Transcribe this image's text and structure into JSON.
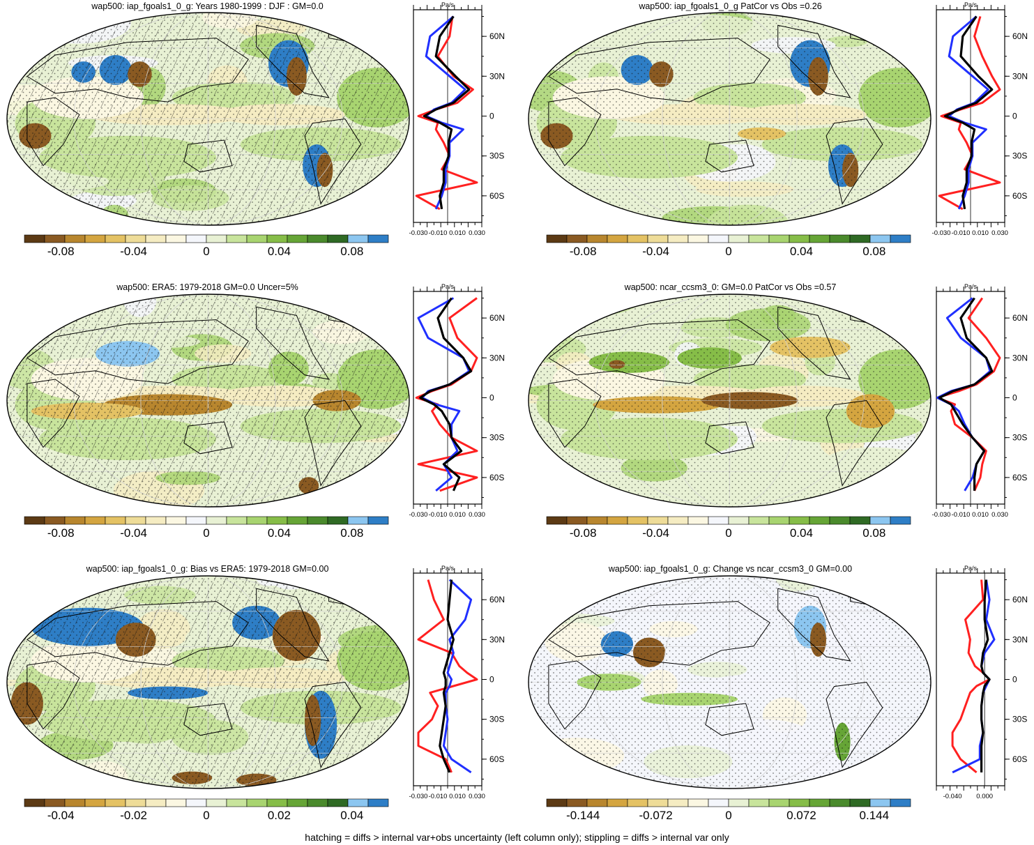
{
  "footnote": "hatching = diffs > internal var+obs uncertainty (left column only); stippling = diffs > internal var only",
  "colors": {
    "scale": [
      "#5c3a14",
      "#8a5a22",
      "#b8862e",
      "#d4a540",
      "#e4c264",
      "#eedc98",
      "#f5ecc2",
      "#fbf7e2",
      "#f4f6fb",
      "#e8f1d4",
      "#c8e49c",
      "#a8d470",
      "#86bd48",
      "#66a536",
      "#4a8a2c",
      "#2f6a24",
      "#8cc6f0",
      "#2e7ec6"
    ],
    "obs": "#ff2020",
    "model": "#2030ff",
    "diff": "#000000"
  },
  "chart_data": [
    {
      "type": "map+profile",
      "title": "wap500: iap_fgoals1_0_g: Years 1980-1999 : DJF : GM=0.0",
      "units": "Pa/s",
      "colorbar_labels": [
        "-0.08",
        "-0.04",
        "0",
        "0.04",
        "0.08"
      ],
      "colorbar_range": [
        -0.1,
        0.1
      ],
      "hatching": true,
      "profile_xticks": [
        "-0.030",
        "-0.010",
        "0.010",
        "0.030"
      ],
      "profile_xlim": [
        -0.035,
        0.035
      ],
      "profile_yticks": [
        "60N",
        "30N",
        "0",
        "30S",
        "60S"
      ],
      "lat": [
        75,
        60,
        45,
        30,
        20,
        10,
        5,
        0,
        -5,
        -10,
        -20,
        -30,
        -40,
        -50,
        -60,
        -70
      ],
      "series": [
        {
          "name": "obs",
          "values": [
            0.005,
            0.002,
            -0.01,
            0.006,
            0.026,
            0.01,
            -0.012,
            -0.03,
            -0.01,
            -0.012,
            -0.004,
            0.002,
            -0.006,
            0.03,
            -0.032,
            -0.008
          ]
        },
        {
          "name": "model",
          "values": [
            0.006,
            -0.018,
            -0.022,
            0.002,
            0.018,
            0.004,
            -0.014,
            -0.022,
            -0.006,
            0.016,
            0.002,
            0.002,
            -0.002,
            -0.002,
            -0.006,
            -0.012
          ]
        },
        {
          "name": "diff",
          "values": [
            0.006,
            -0.008,
            -0.012,
            0.008,
            0.022,
            0.006,
            -0.012,
            -0.024,
            -0.008,
            0.004,
            0.001,
            0.001,
            -0.004,
            -0.004,
            -0.008,
            -0.006
          ]
        }
      ]
    },
    {
      "type": "map+profile",
      "title": "wap500: iap_fgoals1_0_g PatCor vs Obs =0.26",
      "units": "Pa/s",
      "colorbar_labels": [
        "-0.08",
        "-0.04",
        "0",
        "0.04",
        "0.08"
      ],
      "colorbar_range": [
        -0.1,
        0.1
      ],
      "hatching": false,
      "profile_xticks": [
        "-0.030",
        "-0.010",
        "0.010",
        "0.030"
      ],
      "profile_xlim": [
        -0.035,
        0.035
      ],
      "profile_yticks": [
        "60N",
        "30N",
        "0",
        "30S",
        "60S"
      ],
      "lat": [
        75,
        60,
        45,
        30,
        20,
        10,
        5,
        0,
        -5,
        -10,
        -20,
        -30,
        -40,
        -50,
        -60,
        -70
      ],
      "series": [
        {
          "name": "obs",
          "values": [
            0.01,
            0.004,
            0.012,
            0.022,
            0.03,
            0.012,
            -0.01,
            -0.03,
            -0.01,
            -0.012,
            -0.004,
            0.002,
            -0.006,
            0.03,
            -0.032,
            -0.008
          ]
        },
        {
          "name": "model",
          "values": [
            0.006,
            -0.018,
            -0.022,
            0.002,
            0.018,
            0.004,
            -0.014,
            -0.022,
            -0.006,
            0.016,
            0.002,
            0.002,
            -0.002,
            -0.002,
            -0.006,
            -0.012
          ]
        },
        {
          "name": "diff",
          "values": [
            0.006,
            -0.008,
            -0.01,
            0.008,
            0.022,
            0.006,
            -0.012,
            -0.026,
            -0.008,
            0.004,
            0.001,
            0.001,
            -0.004,
            -0.004,
            -0.008,
            -0.006
          ]
        }
      ]
    },
    {
      "type": "map+profile",
      "title": "wap500: ERA5: 1979-2018 GM=0.0 Uncer=5%",
      "units": "Pa/s",
      "colorbar_labels": [
        "-0.08",
        "-0.04",
        "0",
        "0.04",
        "0.08"
      ],
      "colorbar_range": [
        -0.1,
        0.1
      ],
      "hatching": true,
      "profile_xticks": [
        "-0.030",
        "-0.010",
        "0.010",
        "0.030"
      ],
      "profile_xlim": [
        -0.035,
        0.035
      ],
      "profile_yticks": [
        "60N",
        "30N",
        "0",
        "30S",
        "60S"
      ],
      "lat": [
        75,
        60,
        45,
        30,
        20,
        10,
        5,
        0,
        -5,
        -10,
        -20,
        -30,
        -40,
        -50,
        -60,
        -70
      ],
      "series": [
        {
          "name": "obs",
          "values": [
            0.03,
            0.002,
            0.01,
            0.03,
            0.024,
            0.004,
            -0.016,
            -0.032,
            -0.01,
            -0.016,
            -0.008,
            0.004,
            0.03,
            -0.03,
            0.03,
            -0.008
          ]
        },
        {
          "name": "model",
          "values": [
            0.006,
            -0.03,
            -0.02,
            0.016,
            0.022,
            0.002,
            -0.02,
            -0.026,
            -0.012,
            0.012,
            0.004,
            0.004,
            0.01,
            -0.004,
            0.004,
            -0.012
          ]
        },
        {
          "name": "diff",
          "values": [
            0.004,
            -0.01,
            -0.004,
            0.016,
            0.024,
            0.002,
            -0.018,
            -0.028,
            -0.014,
            -0.006,
            0.002,
            0.004,
            0.014,
            -0.004,
            0.012,
            0.006
          ]
        }
      ]
    },
    {
      "type": "map+profile",
      "title": "wap500: ncar_ccsm3_0: GM=0.0 PatCor vs Obs =0.57",
      "units": "Pa/s",
      "colorbar_labels": [
        "-0.08",
        "-0.04",
        "0",
        "0.04",
        "0.08"
      ],
      "colorbar_range": [
        -0.1,
        0.1
      ],
      "hatching": false,
      "profile_xticks": [
        "-0.030",
        "-0.010",
        "0.010",
        "0.030"
      ],
      "profile_xlim": [
        -0.035,
        0.035
      ],
      "profile_yticks": [
        "60N",
        "30N",
        "0",
        "30S",
        "60S"
      ],
      "lat": [
        75,
        60,
        45,
        30,
        20,
        10,
        5,
        0,
        -5,
        -10,
        -20,
        -30,
        -40,
        -50,
        -60,
        -70
      ],
      "series": [
        {
          "name": "obs",
          "values": [
            0.012,
            -0.002,
            0.016,
            0.03,
            0.024,
            0.006,
            -0.012,
            -0.034,
            -0.016,
            -0.02,
            -0.016,
            0.002,
            0.016,
            0.012,
            0.01,
            0.004
          ]
        },
        {
          "name": "model",
          "values": [
            0.002,
            -0.024,
            -0.01,
            0.016,
            0.02,
            0.004,
            -0.02,
            -0.034,
            -0.02,
            -0.012,
            -0.006,
            0.002,
            0.014,
            0.006,
            0.002,
            -0.006
          ]
        },
        {
          "name": "diff",
          "values": [
            0.004,
            -0.01,
            -0.004,
            0.016,
            0.022,
            0.004,
            -0.018,
            -0.032,
            -0.02,
            -0.016,
            -0.008,
            0.002,
            0.014,
            0.006,
            0.004,
            0.004
          ]
        }
      ]
    },
    {
      "type": "map+profile",
      "title": "wap500: iap_fgoals1_0_g: Bias vs ERA5: 1979-2018 GM=0.00",
      "units": "Pa/s",
      "colorbar_labels": [
        "-0.04",
        "-0.02",
        "0",
        "0.02",
        "0.04"
      ],
      "colorbar_range": [
        -0.05,
        0.05
      ],
      "hatching": true,
      "profile_xticks": [
        "-0.030",
        "-0.010",
        "0.010",
        "0.030"
      ],
      "profile_xlim": [
        -0.035,
        0.035
      ],
      "profile_yticks": [
        "60N",
        "30N",
        "0",
        "30S",
        "60S"
      ],
      "lat": [
        75,
        60,
        45,
        30,
        20,
        10,
        5,
        0,
        -5,
        -10,
        -20,
        -30,
        -40,
        -50,
        -60,
        -70
      ],
      "series": [
        {
          "name": "obs",
          "values": [
            -0.02,
            -0.014,
            -0.004,
            -0.03,
            0.004,
            0.012,
            0.02,
            0.03,
            0.006,
            -0.018,
            -0.01,
            -0.016,
            -0.03,
            -0.03,
            -0.002,
            0.004
          ]
        },
        {
          "name": "model",
          "values": [
            0.002,
            0.024,
            0.018,
            0.002,
            0.006,
            0.002,
            0.0,
            0.004,
            0.002,
            -0.002,
            -0.002,
            0.0,
            -0.002,
            -0.004,
            0.004,
            0.024
          ]
        },
        {
          "name": "diff",
          "values": [
            0.004,
            0.002,
            0.0,
            0.006,
            0.002,
            -0.002,
            -0.004,
            -0.002,
            -0.002,
            -0.004,
            -0.002,
            -0.004,
            -0.006,
            -0.008,
            -0.004,
            0.002
          ]
        }
      ]
    },
    {
      "type": "map+profile",
      "title": "wap500: iap_fgoals1_0_g: Change vs ncar_ccsm3_0 GM=0.00",
      "units": "Pa/s",
      "colorbar_labels": [
        "-0.144",
        "-0.072",
        "0",
        "0.072",
        "0.144"
      ],
      "colorbar_range": [
        -0.18,
        0.18
      ],
      "hatching": false,
      "profile_xticks": [
        "-0.040",
        "0.000"
      ],
      "profile_xlim": [
        -0.06,
        0.025
      ],
      "profile_yticks": [
        "60N",
        "30N",
        "0",
        "30S",
        "60S"
      ],
      "lat": [
        75,
        60,
        45,
        30,
        20,
        10,
        5,
        0,
        -5,
        -10,
        -20,
        -30,
        -40,
        -50,
        -60,
        -70
      ],
      "series": [
        {
          "name": "obs",
          "values": [
            -0.004,
            -0.002,
            -0.024,
            -0.018,
            -0.02,
            -0.012,
            -0.002,
            0.006,
            -0.01,
            -0.018,
            -0.024,
            -0.03,
            -0.04,
            -0.04,
            -0.03,
            -0.01
          ]
        },
        {
          "name": "model",
          "values": [
            0.002,
            0.006,
            0.002,
            0.012,
            0.0,
            -0.004,
            -0.002,
            0.006,
            0.002,
            -0.002,
            -0.004,
            -0.004,
            -0.002,
            -0.006,
            -0.006,
            -0.04
          ]
        },
        {
          "name": "diff",
          "values": [
            0.002,
            0.0,
            0.0,
            0.004,
            -0.002,
            -0.004,
            -0.002,
            0.006,
            0.0,
            -0.002,
            -0.004,
            -0.004,
            -0.002,
            -0.004,
            -0.004,
            -0.004
          ]
        }
      ]
    }
  ]
}
